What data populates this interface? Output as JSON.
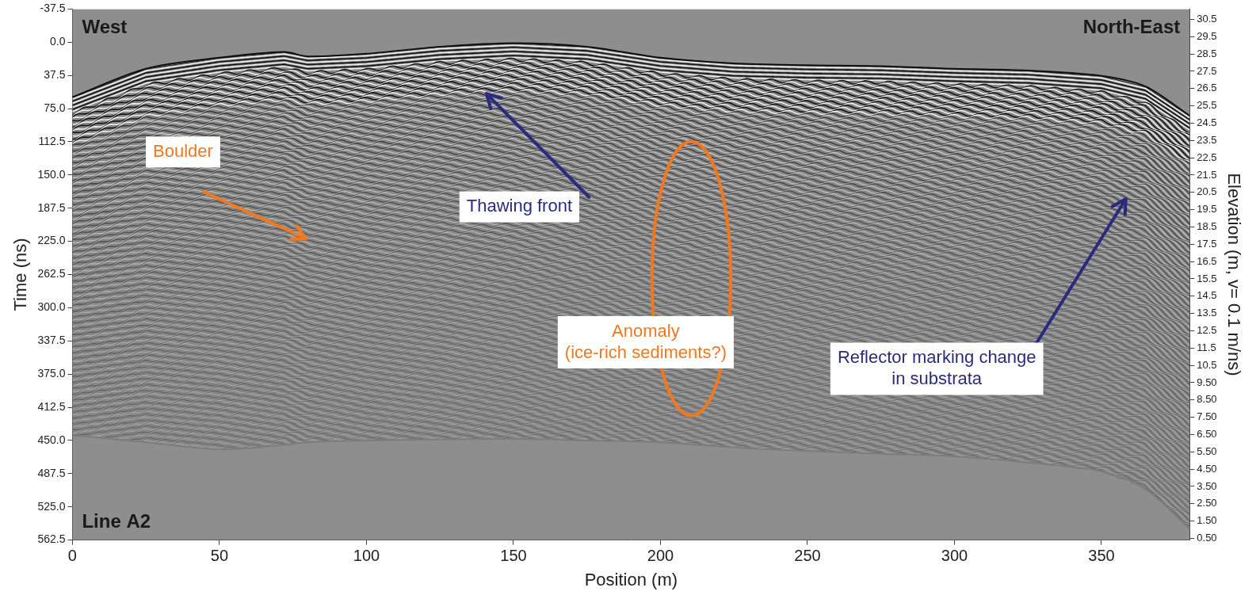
{
  "chart_data": {
    "type": "line",
    "x_label": "Position (m)",
    "y_label": "Time (ns)",
    "y2_label": "Elevation (m, v= 0.1 m/ns)",
    "x": [
      0,
      25,
      50,
      72,
      80,
      100,
      125,
      150,
      175,
      200,
      225,
      250,
      275,
      300,
      325,
      350,
      365,
      380
    ],
    "series": [
      {
        "color": "#111111",
        "values": [
          62,
          30,
          17.5,
          11,
          16,
          13,
          5,
          1,
          5,
          17.5,
          24,
          26,
          27,
          30,
          32,
          38,
          50,
          83
        ]
      },
      {
        "color": "#7d7d7d",
        "values": [
          444,
          452,
          460,
          455,
          452,
          450,
          449,
          448,
          450,
          452,
          458,
          462,
          465,
          468,
          475,
          485,
          505,
          550
        ]
      }
    ],
    "xlim": [
      0,
      380
    ],
    "xticks": [
      0,
      50,
      100,
      150,
      200,
      250,
      300,
      350
    ],
    "ylim": [
      -37.5,
      562.5
    ],
    "yticks": [
      -37.5,
      {
        "value": 0,
        "label": "0.0"
      },
      37.5,
      {
        "value": 75,
        "label": "75.0"
      },
      112.5,
      {
        "value": 150,
        "label": "150.0"
      },
      187.5,
      {
        "value": 225,
        "label": "225.0"
      },
      262.5,
      {
        "value": 300,
        "label": "300.0"
      },
      337.5,
      {
        "value": 375,
        "label": "375.0"
      },
      412.5,
      {
        "value": 450,
        "label": "450.0"
      },
      487.5,
      {
        "value": 525,
        "label": "525.0"
      },
      562.5
    ],
    "y2lim": [
      0.4,
      31.1
    ],
    "y2ticks": [
      30.5,
      29.5,
      28.5,
      27.5,
      26.5,
      25.5,
      24.5,
      23.5,
      22.5,
      21.5,
      20.5,
      19.5,
      18.5,
      17.5,
      16.5,
      15.5,
      14.5,
      13.5,
      12.5,
      11.5,
      10.5,
      {
        "value": 9.5,
        "label": "9.50"
      },
      {
        "value": 8.5,
        "label": "8.50"
      },
      {
        "value": 7.5,
        "label": "7.50"
      },
      {
        "value": 6.5,
        "label": "6.50"
      },
      {
        "value": 5.5,
        "label": "5.50"
      },
      {
        "value": 4.5,
        "label": "4.50"
      },
      {
        "value": 3.5,
        "label": "3.50"
      },
      {
        "value": 2.5,
        "label": "2.50"
      },
      {
        "value": 1.5,
        "label": "1.50"
      },
      {
        "value": 0.5,
        "label": "0.50"
      }
    ],
    "grid": false,
    "corner_labels": {
      "top_left": "West",
      "top_right": "North-East",
      "bottom_left": "Line A2"
    },
    "annotations": [
      {
        "text": [
          "Boulder"
        ],
        "x": 37.6,
        "y": 124,
        "color": "#f0781e",
        "arrow_from": [
          44.6,
          169
        ],
        "arrow_to": [
          79.5,
          222
        ]
      },
      {
        "text": [
          "Thawing front"
        ],
        "x": 152,
        "y": 186,
        "color": "#2a2a80",
        "arrow_from": [
          175.7,
          175
        ],
        "arrow_to": [
          140.8,
          58
        ]
      },
      {
        "text": [
          "Anomaly",
          "(ice-rich sediments?)"
        ],
        "x": 195,
        "y": 339,
        "color": "#f0781e",
        "ellipse": {
          "x": 210.5,
          "y": 267,
          "x_radius": 13.4,
          "y_radius": 155
        }
      },
      {
        "text": [
          "Reflector marking change",
          "in substrata"
        ],
        "x": 294,
        "y": 369,
        "color": "#2a2a80",
        "arrow_from": [
          327.7,
          341
        ],
        "arrow_to": [
          358.3,
          177
        ]
      }
    ]
  }
}
